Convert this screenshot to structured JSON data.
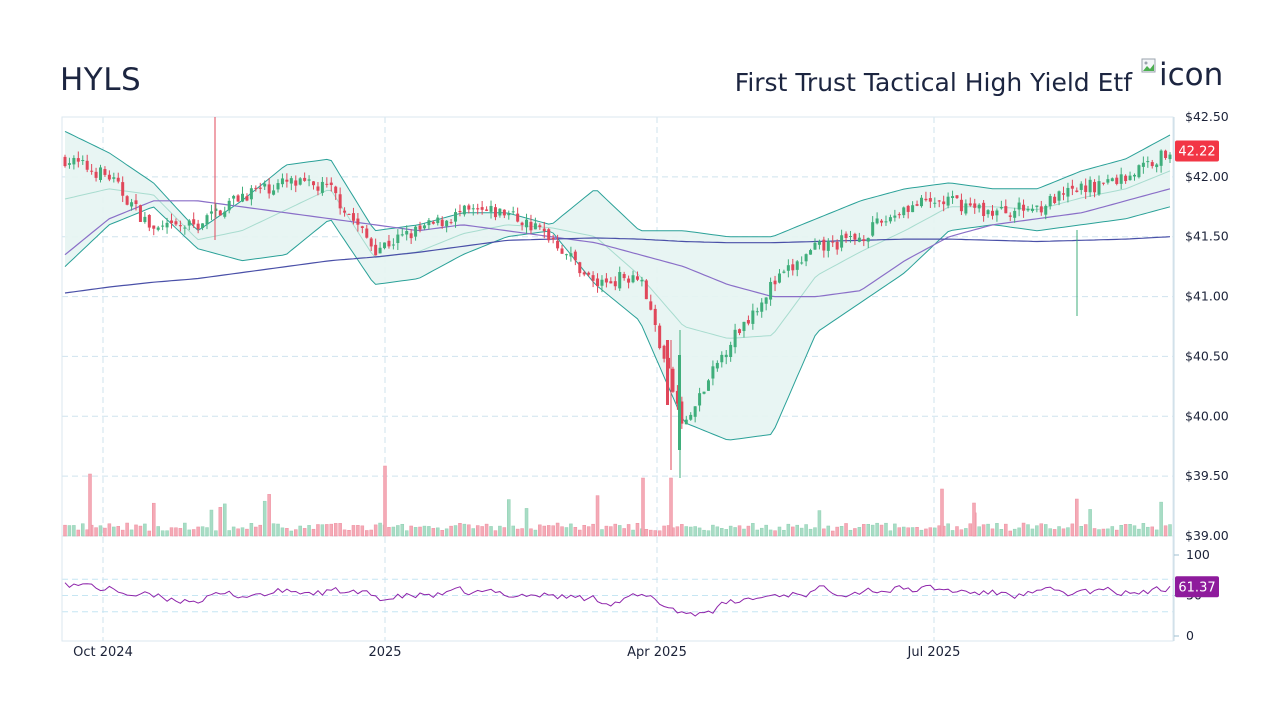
{
  "header": {
    "ticker": "HYLS",
    "name": "First Trust Tactical High Yield Etf",
    "icon_alt": "icon"
  },
  "colors": {
    "up": "#26a69a",
    "up_candle": "#3fae7b",
    "down": "#e0475a",
    "up_volume": "#a8dcc5",
    "down_volume": "#f4aab6",
    "bollinger_band": "#2aa198",
    "bollinger_fill": "#e6f4f2",
    "bollinger_mid": "#a8dccf",
    "sma_fast": "#8a6fc8",
    "sma_slow": "#4a50a8",
    "rsi_line": "#8e24aa",
    "grid": "#cfe3ee",
    "price_badge": "#f23645",
    "rsi_badge": "#8e1b9c"
  },
  "chart_data": {
    "type": "candlestick",
    "title": "HYLS",
    "subtitle": "First Trust Tactical High Yield Etf",
    "x_ticks": [
      {
        "label": "Oct 2024",
        "x": 103
      },
      {
        "label": "2025",
        "x": 385
      },
      {
        "label": "Apr 2025",
        "x": 657
      },
      {
        "label": "Jul 2025",
        "x": 934
      }
    ],
    "price_axis": {
      "ticks": [
        "$42.50",
        "$42.00",
        "$41.50",
        "$41.00",
        "$40.50",
        "$40.00",
        "$39.50",
        "$39.00"
      ],
      "values": [
        42.5,
        42.0,
        41.5,
        41.0,
        40.5,
        40.0,
        39.5,
        39.0
      ],
      "range": [
        39.0,
        42.5
      ]
    },
    "last_price": "42.22",
    "rsi_axis": {
      "ticks": [
        "100",
        "50",
        "0"
      ],
      "values": [
        100,
        50,
        0
      ],
      "guides": [
        70,
        50,
        30
      ]
    },
    "last_rsi": "61.37",
    "approx_close_series": {
      "note": "approximate closes sampled ~every 2 weeks, read from pixels",
      "dates": [
        "2024-09-19",
        "2024-10-01",
        "2024-10-15",
        "2024-11-01",
        "2024-11-15",
        "2024-12-01",
        "2024-12-15",
        "2025-01-01",
        "2025-01-15",
        "2025-02-01",
        "2025-02-15",
        "2025-03-01",
        "2025-03-15",
        "2025-04-01",
        "2025-04-07",
        "2025-04-15",
        "2025-05-01",
        "2025-05-15",
        "2025-06-01",
        "2025-06-15",
        "2025-07-01",
        "2025-07-15",
        "2025-08-01",
        "2025-08-15",
        "2025-09-01",
        "2025-09-15"
      ],
      "close": [
        42.15,
        42.0,
        41.55,
        41.6,
        41.85,
        41.95,
        41.9,
        41.4,
        41.55,
        41.7,
        41.7,
        41.5,
        41.1,
        41.2,
        39.9,
        40.6,
        41.1,
        41.4,
        41.5,
        41.75,
        41.8,
        41.7,
        41.75,
        41.9,
        42.0,
        42.22
      ]
    },
    "indicators": [
      "Bollinger Bands (20,2)",
      "SMA fast",
      "SMA slow",
      "Volume",
      "RSI(14)"
    ],
    "bollinger_upper_approx": [
      42.38,
      42.2,
      41.95,
      41.55,
      41.8,
      42.1,
      42.15,
      41.55,
      41.6,
      41.7,
      41.7,
      41.6,
      41.9,
      41.55,
      41.55,
      41.5,
      41.5,
      41.65,
      41.8,
      41.9,
      41.95,
      41.9,
      41.9,
      42.05,
      42.15,
      42.35
    ],
    "bollinger_lower_approx": [
      41.25,
      41.6,
      41.75,
      41.4,
      41.3,
      41.35,
      41.65,
      41.1,
      41.15,
      41.35,
      41.5,
      41.55,
      41.1,
      40.8,
      39.95,
      39.8,
      39.85,
      40.7,
      40.95,
      41.2,
      41.55,
      41.6,
      41.55,
      41.6,
      41.65,
      41.75
    ],
    "sma_fast_approx": [
      41.35,
      41.65,
      41.8,
      41.8,
      41.75,
      41.7,
      41.65,
      41.6,
      41.55,
      41.6,
      41.55,
      41.5,
      41.45,
      41.35,
      41.25,
      41.1,
      41.0,
      41.0,
      41.05,
      41.3,
      41.5,
      41.6,
      41.65,
      41.7,
      41.8,
      41.9
    ],
    "sma_slow_approx": [
      41.03,
      41.08,
      41.12,
      41.15,
      41.2,
      41.25,
      41.3,
      41.33,
      41.37,
      41.42,
      41.47,
      41.48,
      41.49,
      41.48,
      41.46,
      41.45,
      41.45,
      41.46,
      41.47,
      41.48,
      41.48,
      41.47,
      41.46,
      41.47,
      41.48,
      41.5
    ]
  }
}
